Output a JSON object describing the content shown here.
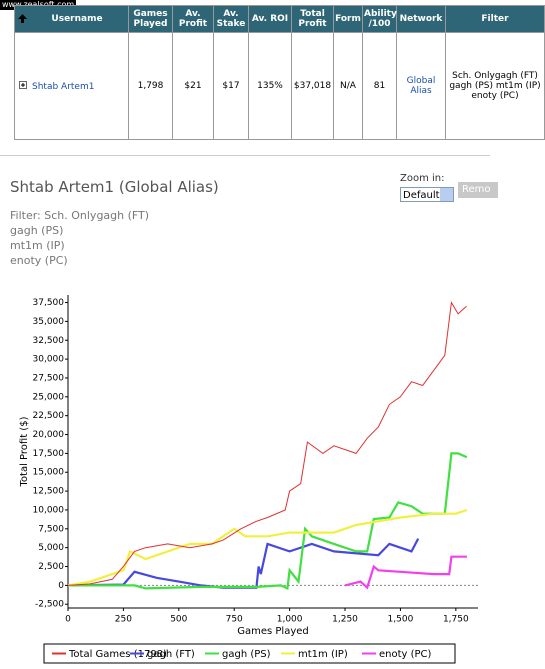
{
  "watermark": "www.zealsoft.com",
  "table": {
    "headers": [
      "Username",
      "Games Played",
      "Av. Profit",
      "Av. Stake",
      "Av. ROI",
      "Total Profit",
      "Form",
      "Ability /100",
      "Network",
      "Filter"
    ],
    "rows": [
      [
        "Shtab Artem1",
        "1,798",
        "$21",
        "$17",
        "135%",
        "$37,018",
        "N/A",
        "81",
        "Global Alias",
        "Sch. Onlygagh (FT) gagh (PS) mt1m (IP) enoty (PC)"
      ]
    ]
  },
  "profile": {
    "title": "Shtab Artem1 (Global Alias)",
    "filter_lines": [
      "Filter: Sch. Onlygagh (FT)",
      "gagh (PS)",
      "mt1m (IP)",
      "enoty (PC)"
    ],
    "zoom_label": "Zoom in:",
    "zoom_value": "Default",
    "remove_button": "Remo"
  },
  "chart_data": {
    "type": "line",
    "xlabel": "Games Played",
    "ylabel": "Total Profit ($)",
    "xlim": [
      0,
      1850
    ],
    "ylim": [
      -3000,
      38500
    ],
    "xticks": [
      0,
      250,
      500,
      750,
      {
        "value": 1000,
        "label": "1,000"
      },
      {
        "value": 1250,
        "label": "1,250"
      },
      {
        "value": 1500,
        "label": "1,500"
      },
      {
        "value": 1750,
        "label": "1,750"
      }
    ],
    "yticks": [
      {
        "value": -2500,
        "label": "-2,500"
      },
      0,
      {
        "value": 2500,
        "label": "2,500"
      },
      {
        "value": 5000,
        "label": "5,000"
      },
      {
        "value": 7500,
        "label": "7,500"
      },
      {
        "value": 10000,
        "label": "10,000"
      },
      {
        "value": 12500,
        "label": "12,500"
      },
      {
        "value": 15000,
        "label": "15,000"
      },
      {
        "value": 17500,
        "label": "17,500"
      },
      {
        "value": 20000,
        "label": "20,000"
      },
      {
        "value": 22500,
        "label": "22,500"
      },
      {
        "value": 25000,
        "label": "25,000"
      },
      {
        "value": 27500,
        "label": "27,500"
      },
      {
        "value": 30000,
        "label": "30,000"
      },
      {
        "value": 32500,
        "label": "32,500"
      },
      {
        "value": 35000,
        "label": "35,000"
      },
      {
        "value": 37500,
        "label": "37,500"
      }
    ],
    "series": [
      {
        "name": "Total Games (1798)",
        "color": "#e03030",
        "x": [
          0,
          100,
          200,
          250,
          300,
          350,
          450,
          550,
          650,
          700,
          780,
          850,
          900,
          980,
          1000,
          1050,
          1080,
          1150,
          1200,
          1300,
          1350,
          1400,
          1450,
          1500,
          1550,
          1600,
          1650,
          1700,
          1730,
          1760,
          1798
        ],
        "values": [
          0,
          200,
          800,
          2500,
          4500,
          5000,
          5500,
          5000,
          5500,
          6000,
          7500,
          8500,
          9000,
          10000,
          12500,
          13500,
          19000,
          17500,
          18500,
          17500,
          19500,
          21000,
          24000,
          25000,
          27000,
          26500,
          28500,
          30500,
          37500,
          36000,
          37000
        ]
      },
      {
        "name": "gagh (FT)",
        "color": "#4848e0",
        "x": [
          0,
          250,
          300,
          400,
          500,
          600,
          700,
          850,
          860,
          870,
          900,
          1000,
          1100,
          1200,
          1400,
          1450,
          1550,
          1580
        ],
        "values": [
          0,
          100,
          1800,
          1000,
          500,
          0,
          -300,
          -300,
          2500,
          1500,
          5500,
          4500,
          5500,
          4500,
          4000,
          5500,
          4500,
          6200
        ]
      },
      {
        "name": "gagh (PS)",
        "color": "#40e040",
        "x": [
          0,
          300,
          350,
          600,
          850,
          960,
          990,
          1000,
          1040,
          1070,
          1100,
          1200,
          1300,
          1350,
          1380,
          1450,
          1490,
          1550,
          1600,
          1700,
          1730,
          1760,
          1800
        ],
        "values": [
          0,
          0,
          -400,
          -200,
          -200,
          0,
          -400,
          2000,
          500,
          7500,
          6500,
          5500,
          4500,
          4500,
          8800,
          9000,
          11000,
          10500,
          9500,
          9500,
          17500,
          17500,
          17000
        ]
      },
      {
        "name": "mt1m (IP)",
        "color": "#f0f040",
        "x": [
          0,
          100,
          200,
          250,
          280,
          350,
          450,
          550,
          650,
          700,
          750,
          800,
          900,
          1000,
          1100,
          1200,
          1300,
          1400,
          1500,
          1650,
          1750,
          1800
        ],
        "values": [
          0,
          500,
          1500,
          2000,
          4500,
          3500,
          4500,
          5500,
          5500,
          6500,
          7500,
          6500,
          6500,
          7000,
          7000,
          7000,
          8000,
          8500,
          9000,
          9500,
          9500,
          10000
        ]
      },
      {
        "name": "enoty (PC)",
        "color": "#f040f0",
        "x": [
          1250,
          1320,
          1350,
          1380,
          1400,
          1500,
          1650,
          1720,
          1730,
          1800
        ],
        "values": [
          0,
          500,
          -300,
          2500,
          2000,
          1800,
          1500,
          1500,
          3800,
          3800
        ]
      }
    ]
  }
}
